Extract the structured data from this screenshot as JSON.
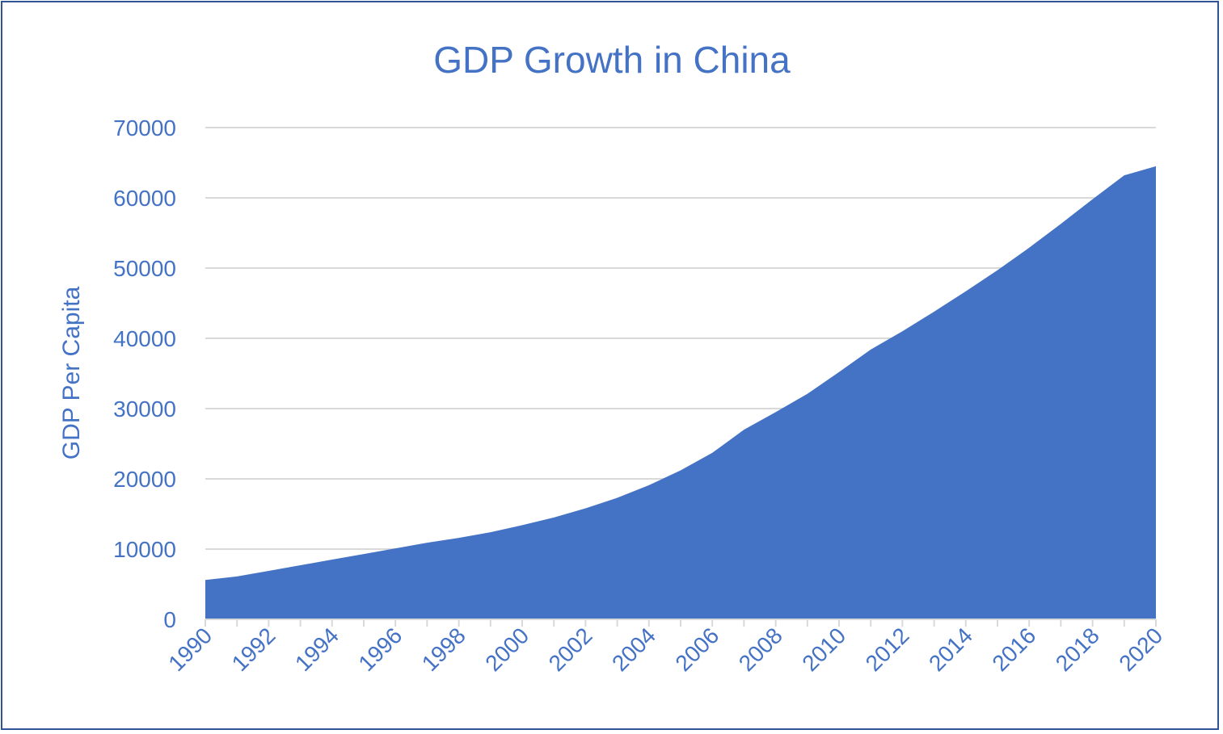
{
  "chart_data": {
    "type": "area",
    "title": "GDP Growth in China",
    "xlabel": "",
    "ylabel": "GDP Per Capita",
    "x": [
      1990,
      1991,
      1992,
      1993,
      1994,
      1995,
      1996,
      1997,
      1998,
      1999,
      2000,
      2001,
      2002,
      2003,
      2004,
      2005,
      2006,
      2007,
      2008,
      2009,
      2010,
      2011,
      2012,
      2013,
      2014,
      2015,
      2016,
      2017,
      2018,
      2019,
      2020
    ],
    "x_tick_labels": [
      "1990",
      "1992",
      "1994",
      "1996",
      "1998",
      "2000",
      "2002",
      "2004",
      "2006",
      "2008",
      "2010",
      "2012",
      "2014",
      "2016",
      "2018",
      "2020"
    ],
    "series": [
      {
        "values": [
          5600,
          6100,
          6900,
          7700,
          8500,
          9300,
          10100,
          10900,
          11600,
          12400,
          13400,
          14500,
          15800,
          17300,
          19100,
          21200,
          23700,
          27000,
          29500,
          32100,
          35200,
          38400,
          41000,
          43800,
          46700,
          49700,
          52900,
          56300,
          59800,
          63200,
          64500
        ],
        "color": "#4472C4"
      }
    ],
    "ylim": [
      0,
      70000
    ],
    "y_ticks": [
      0,
      10000,
      20000,
      30000,
      40000,
      50000,
      60000,
      70000
    ],
    "grid": true,
    "legend": "none"
  },
  "colors": {
    "accent": "#4472C4",
    "frame": "#2F5597",
    "gridline": "#D9D9D9",
    "axis": "#D9D9D9"
  }
}
